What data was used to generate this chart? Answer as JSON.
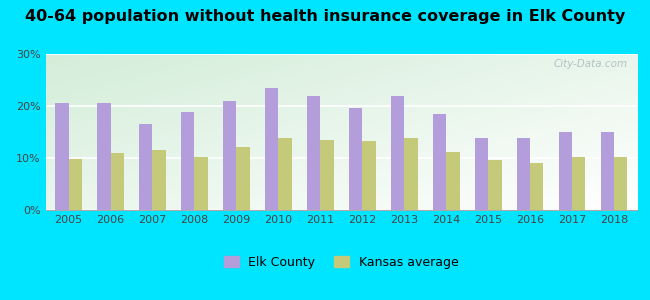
{
  "title": "40-64 population without health insurance coverage in Elk County",
  "years": [
    2005,
    2006,
    2007,
    2008,
    2009,
    2010,
    2011,
    2012,
    2013,
    2014,
    2015,
    2016,
    2017,
    2018
  ],
  "elk_county": [
    20.5,
    20.5,
    16.5,
    18.8,
    21.0,
    23.5,
    22.0,
    19.7,
    22.0,
    18.5,
    13.8,
    13.8,
    15.0,
    15.0
  ],
  "kansas_avg": [
    9.9,
    11.0,
    11.5,
    10.2,
    12.2,
    13.8,
    13.5,
    13.3,
    13.8,
    11.2,
    9.7,
    9.1,
    10.1,
    10.2
  ],
  "elk_color": "#b39ddb",
  "ks_color": "#c5c97a",
  "bg_color": "#00e5ff",
  "yticks": [
    0,
    10,
    20,
    30
  ],
  "ylim": [
    0,
    30
  ],
  "watermark": "City-Data.com",
  "legend_elk": "Elk County",
  "legend_ks": "Kansas average",
  "title_fontsize": 11.5,
  "tick_fontsize": 8
}
